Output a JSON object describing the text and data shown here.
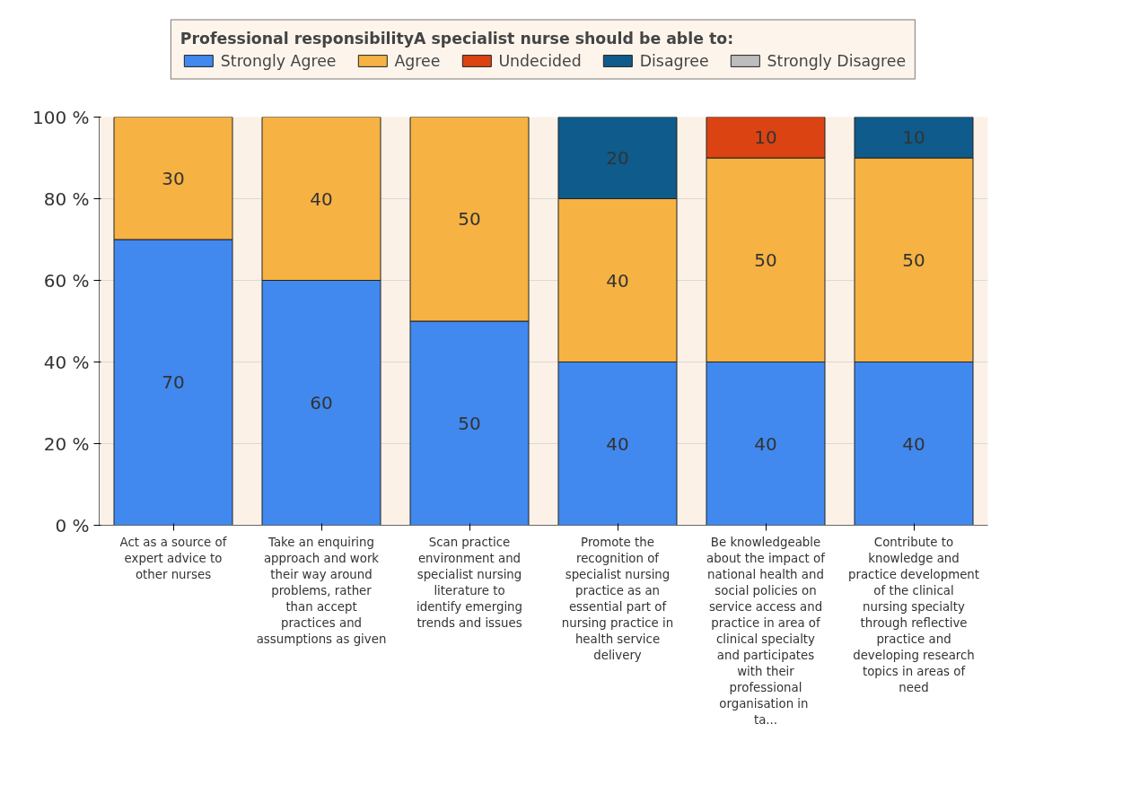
{
  "chart_data": {
    "type": "bar",
    "stacked": true,
    "legend_title": "Professional responsibilityA specialist nurse should be able to:",
    "categories": [
      "Act as a source of expert advice to other nurses",
      "Take an enquiring approach and work their way around problems, rather than accept practices and assumptions as given",
      "Scan practice environment and specialist nursing literature to identify emerging trends and issues",
      "Promote the recognition of specialist nursing practice as an essential part of nursing practice in health service delivery",
      "Be knowledgeable about the impact of national health and social policies on service access and practice in area of clinical specialty and participates with their professional organisation  in ta...",
      "Contribute to knowledge and practice development of the clinical nursing specialty through reflective practice and developing research topics in areas of need"
    ],
    "series": [
      {
        "name": "Strongly Agree",
        "color": "#4189ee",
        "values": [
          70,
          60,
          50,
          40,
          40,
          40
        ]
      },
      {
        "name": "Agree",
        "color": "#f6b243",
        "values": [
          30,
          40,
          50,
          40,
          50,
          50
        ]
      },
      {
        "name": "Undecided",
        "color": "#dc4312",
        "values": [
          null,
          null,
          null,
          null,
          10,
          null
        ]
      },
      {
        "name": "Disagree",
        "color": "#0e5b8c",
        "values": [
          null,
          null,
          null,
          20,
          null,
          10
        ]
      },
      {
        "name": "Strongly Disagree",
        "color": "#bdbdbd",
        "values": [
          null,
          null,
          null,
          null,
          null,
          null
        ]
      }
    ],
    "ylim": [
      0,
      100
    ],
    "yticks": [
      {
        "value": 0,
        "label": "0 %"
      },
      {
        "value": 20,
        "label": "20 %"
      },
      {
        "value": 40,
        "label": "40 %"
      },
      {
        "value": 60,
        "label": "60 %"
      },
      {
        "value": 80,
        "label": "80 %"
      },
      {
        "value": 100,
        "label": "100 %"
      }
    ],
    "grid": "y",
    "legend": "top",
    "data_labels": true
  }
}
